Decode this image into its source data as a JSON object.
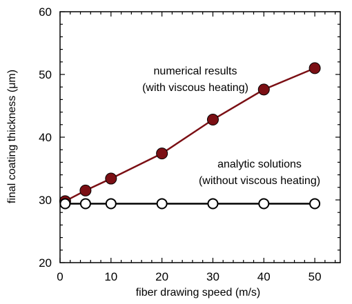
{
  "chart_data": {
    "type": "line",
    "xlabel": "fiber drawing speed (m/s)",
    "ylabel": "final coating thickness (μm)",
    "xlim": [
      0,
      55
    ],
    "ylim": [
      20,
      60
    ],
    "x_ticks": [
      0,
      10,
      20,
      30,
      40,
      50
    ],
    "y_ticks": [
      20,
      30,
      40,
      50,
      60
    ],
    "grid": false,
    "series": [
      {
        "name": "numerical results (with viscous heating)",
        "marker": "filled-circle",
        "color": "#7b0f14",
        "x": [
          1,
          5,
          10,
          20,
          30,
          40,
          50
        ],
        "y": [
          29.8,
          31.5,
          33.4,
          37.4,
          42.8,
          47.6,
          51.0
        ]
      },
      {
        "name": "analytic solutions (without viscous heating)",
        "marker": "open-circle",
        "color": "#000000",
        "x": [
          1,
          5,
          10,
          20,
          30,
          40,
          50
        ],
        "y": [
          29.4,
          29.4,
          29.4,
          29.4,
          29.4,
          29.4,
          29.4
        ]
      }
    ],
    "annotations": {
      "numerical_line1": "numerical results",
      "numerical_line2": "(with viscous heating)",
      "analytic_line1": "analytic solutions",
      "analytic_line2": "(without viscous heating)"
    }
  }
}
